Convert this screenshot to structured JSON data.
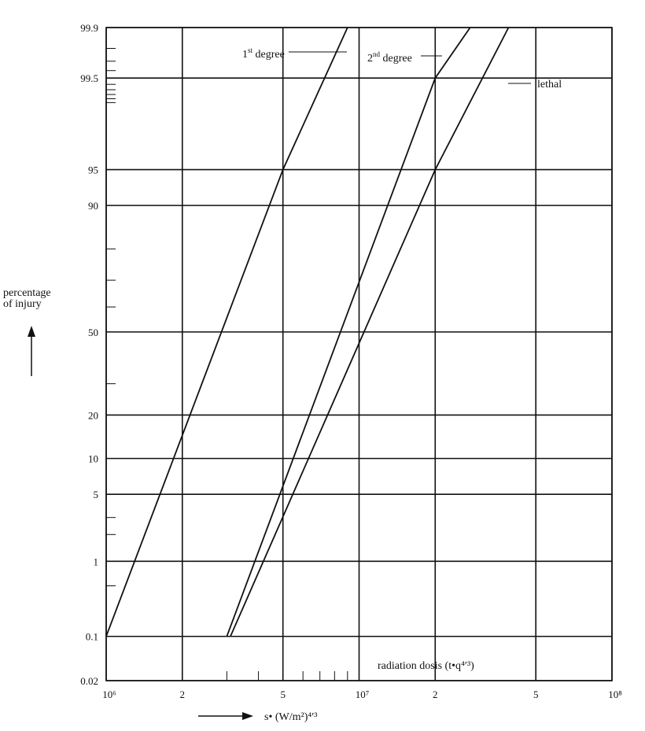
{
  "chart_data": {
    "type": "line",
    "title": "",
    "x_scale": "log",
    "y_scale": "probability",
    "grid": true,
    "xlim": [
      1000000,
      100000000
    ],
    "ylim": [
      0.02,
      99.9
    ],
    "ylabel": [
      "percentage",
      "of injury"
    ],
    "xlabel": "s• (W/m²)⁴′³",
    "xlabel_note": "radiation dosis (t•q⁴′³)",
    "x_tick_labels": [
      {
        "value": 1000000,
        "label": "10⁶"
      },
      {
        "value": 2000000,
        "label": "2"
      },
      {
        "value": 5000000,
        "label": "5"
      },
      {
        "value": 10000000,
        "label": "10⁷"
      },
      {
        "value": 20000000,
        "label": "2"
      },
      {
        "value": 50000000,
        "label": "5"
      },
      {
        "value": 100000000,
        "label": "10⁸"
      }
    ],
    "x_minor_ticks": [
      3000000,
      4000000,
      6000000,
      7000000,
      8000000,
      9000000
    ],
    "y_tick_labels": [
      {
        "value": 99.9,
        "label": "99.9"
      },
      {
        "value": 99.5,
        "label": "99.5"
      },
      {
        "value": 95,
        "label": "95"
      },
      {
        "value": 90,
        "label": "90"
      },
      {
        "value": 50,
        "label": "50"
      },
      {
        "value": 20,
        "label": "20"
      },
      {
        "value": 10,
        "label": "10"
      },
      {
        "value": 5,
        "label": "5"
      },
      {
        "value": 1,
        "label": "1"
      },
      {
        "value": 0.1,
        "label": "0.1"
      },
      {
        "value": 0.02,
        "label": "0.02"
      }
    ],
    "y_minor_ticks": [
      99.8,
      99.7,
      99.6,
      99.4,
      99.3,
      99.2,
      99.1,
      99,
      80,
      70,
      60,
      30,
      3,
      2,
      0.5
    ],
    "series": [
      {
        "name": "1st degree",
        "name_parts": [
          "1",
          "st",
          " degree"
        ],
        "points": [
          [
            1000000,
            0.1
          ],
          [
            5000000,
            95
          ],
          [
            9000000,
            99.9
          ]
        ]
      },
      {
        "name": "2nd degree",
        "name_parts": [
          "2",
          "nd",
          " degree"
        ],
        "points": [
          [
            3000000,
            0.1
          ],
          [
            20000000,
            99.5
          ],
          [
            27500000,
            99.9
          ]
        ]
      },
      {
        "name": "lethal",
        "name_parts": [
          "",
          "",
          "lethal"
        ],
        "points": [
          [
            3100000,
            0.1
          ],
          [
            20000000,
            95
          ],
          [
            39000000,
            99.9
          ]
        ]
      }
    ]
  }
}
